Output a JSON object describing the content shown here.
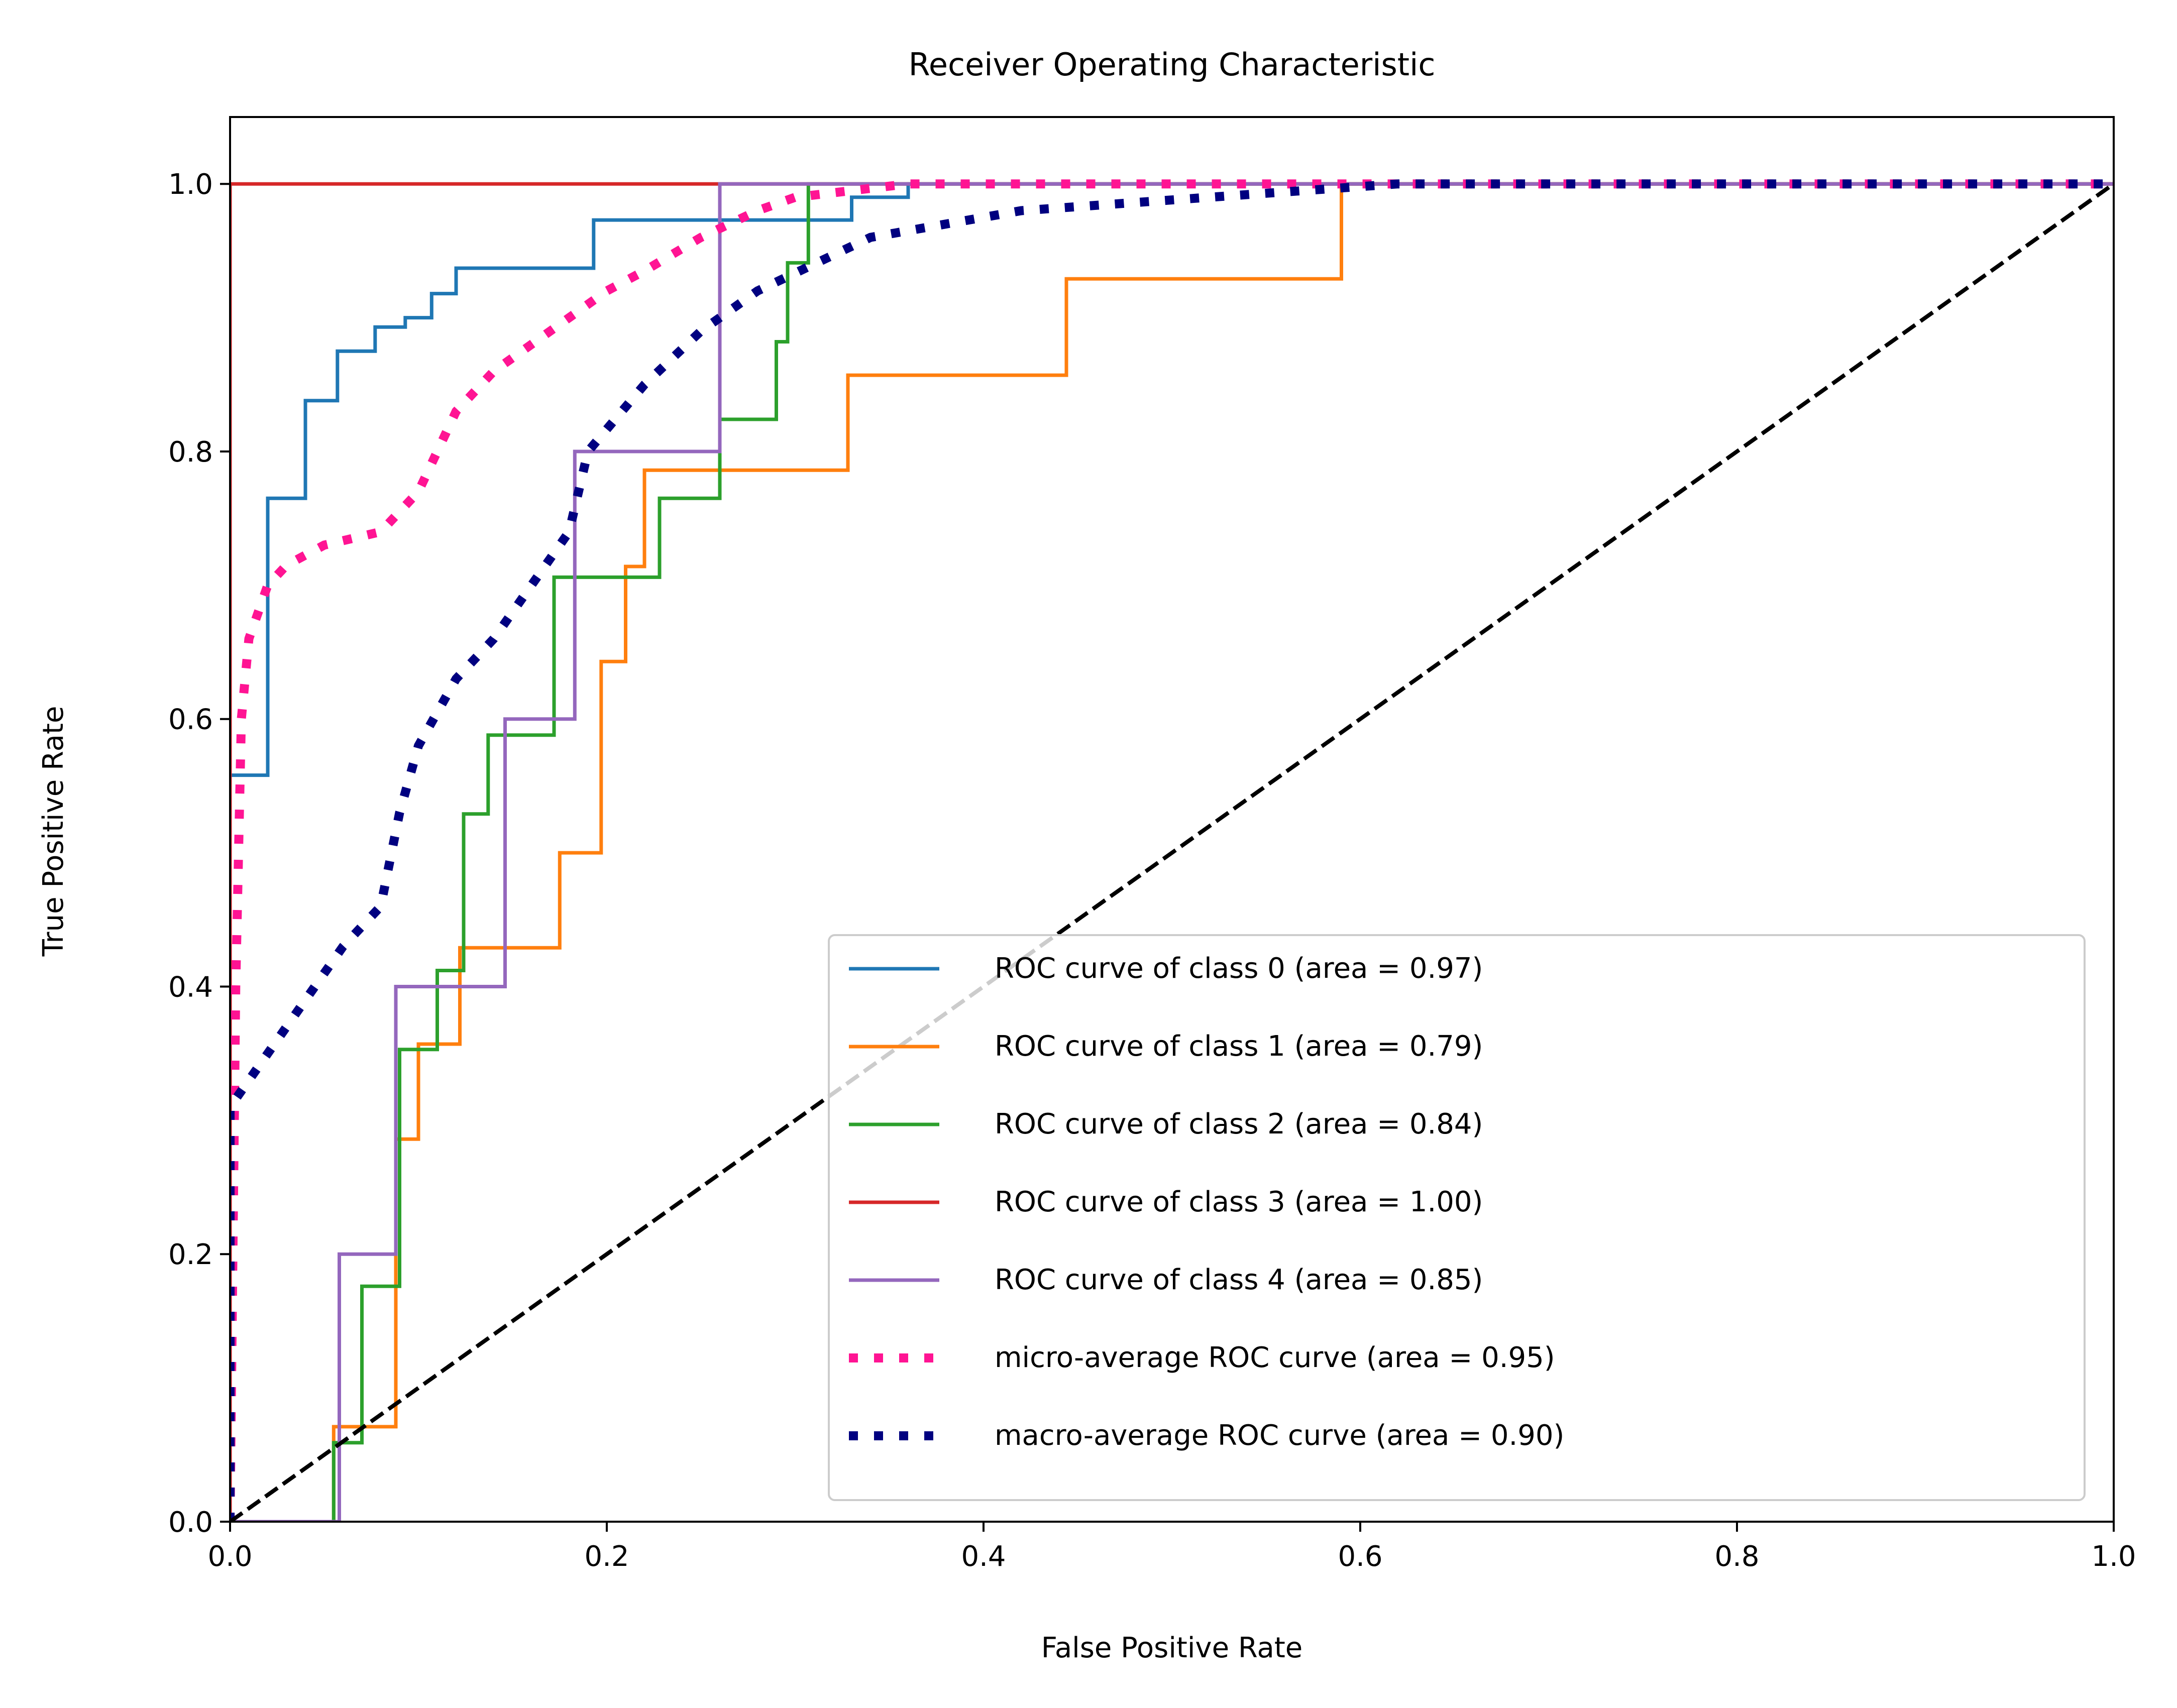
{
  "chart_data": {
    "type": "line",
    "title": "Receiver Operating Characteristic",
    "xlabel": "False Positive Rate",
    "ylabel": "True Positive Rate",
    "xlim": [
      0.0,
      1.0
    ],
    "ylim": [
      0.0,
      1.05
    ],
    "x_ticks": [
      "0.0",
      "0.2",
      "0.4",
      "0.6",
      "0.8",
      "1.0"
    ],
    "y_ticks": [
      "0.0",
      "0.2",
      "0.4",
      "0.6",
      "0.8",
      "1.0"
    ],
    "grid": false,
    "legend_position": "lower-right",
    "series": [
      {
        "name": "ROC curve of class 0 (area = 0.97)",
        "color": "#1f77b4",
        "style": "solid",
        "x": [
          0.0,
          0.0,
          0.02,
          0.02,
          0.04,
          0.04,
          0.057,
          0.057,
          0.077,
          0.077,
          0.093,
          0.093,
          0.107,
          0.107,
          0.12,
          0.12,
          0.134,
          0.134,
          0.155,
          0.155,
          0.193,
          0.193,
          0.33,
          0.33,
          0.36,
          0.36,
          1.0
        ],
        "y": [
          0.0,
          0.558,
          0.558,
          0.765,
          0.765,
          0.838,
          0.838,
          0.875,
          0.875,
          0.893,
          0.893,
          0.9,
          0.9,
          0.918,
          0.918,
          0.937,
          0.937,
          0.937,
          0.937,
          0.937,
          0.937,
          0.973,
          0.973,
          0.99,
          0.99,
          1.0,
          1.0
        ]
      },
      {
        "name": "ROC curve of class 1 (area = 0.79)",
        "color": "#ff7f0e",
        "style": "solid",
        "x": [
          0.0,
          0.055,
          0.055,
          0.088,
          0.088,
          0.1,
          0.1,
          0.122,
          0.122,
          0.175,
          0.175,
          0.197,
          0.197,
          0.21,
          0.21,
          0.22,
          0.22,
          0.228,
          0.228,
          0.328,
          0.328,
          0.444,
          0.444,
          0.59,
          0.59,
          1.0
        ],
        "y": [
          0.0,
          0.0,
          0.071,
          0.071,
          0.286,
          0.286,
          0.357,
          0.357,
          0.429,
          0.429,
          0.5,
          0.5,
          0.643,
          0.643,
          0.714,
          0.714,
          0.786,
          0.786,
          0.786,
          0.786,
          0.857,
          0.857,
          0.929,
          0.929,
          1.0,
          1.0
        ]
      },
      {
        "name": "ROC curve of class 2 (area = 0.84)",
        "color": "#2ca02c",
        "style": "solid",
        "x": [
          0.0,
          0.055,
          0.055,
          0.07,
          0.07,
          0.09,
          0.09,
          0.11,
          0.11,
          0.124,
          0.124,
          0.137,
          0.137,
          0.172,
          0.172,
          0.205,
          0.205,
          0.228,
          0.228,
          0.26,
          0.26,
          0.29,
          0.29,
          0.296,
          0.296,
          0.307,
          0.307,
          1.0
        ],
        "y": [
          0.0,
          0.0,
          0.059,
          0.059,
          0.176,
          0.176,
          0.353,
          0.353,
          0.412,
          0.412,
          0.529,
          0.529,
          0.588,
          0.588,
          0.706,
          0.706,
          0.706,
          0.706,
          0.765,
          0.765,
          0.824,
          0.824,
          0.882,
          0.882,
          0.941,
          0.941,
          1.0,
          1.0
        ]
      },
      {
        "name": "ROC curve of class 3 (area = 1.00)",
        "color": "#d62728",
        "style": "solid",
        "x": [
          0.0,
          0.0,
          1.0
        ],
        "y": [
          0.0,
          1.0,
          1.0
        ]
      },
      {
        "name": "ROC curve of class 4 (area = 0.85)",
        "color": "#9467bd",
        "style": "solid",
        "x": [
          0.0,
          0.058,
          0.058,
          0.088,
          0.088,
          0.146,
          0.146,
          0.183,
          0.183,
          0.26,
          0.26,
          1.0
        ],
        "y": [
          0.0,
          0.0,
          0.2,
          0.2,
          0.4,
          0.4,
          0.6,
          0.6,
          0.8,
          0.8,
          1.0,
          1.0
        ]
      },
      {
        "name": "micro-average ROC curve (area = 0.95)",
        "color": "#ff1493",
        "style": "dotted",
        "x": [
          0.0,
          0.003,
          0.006,
          0.01,
          0.02,
          0.03,
          0.05,
          0.08,
          0.1,
          0.12,
          0.14,
          0.16,
          0.18,
          0.2,
          0.22,
          0.25,
          0.28,
          0.3,
          0.33,
          0.36,
          0.4,
          0.5,
          0.6,
          0.8,
          1.0
        ],
        "y": [
          0.0,
          0.4,
          0.6,
          0.66,
          0.7,
          0.715,
          0.73,
          0.74,
          0.77,
          0.83,
          0.86,
          0.88,
          0.9,
          0.92,
          0.935,
          0.96,
          0.98,
          0.99,
          0.995,
          1.0,
          1.0,
          1.0,
          1.0,
          1.0,
          1.0
        ]
      },
      {
        "name": "macro-average ROC curve (area = 0.90)",
        "color": "#000080",
        "style": "dotted",
        "x": [
          0.0,
          0.0,
          0.01,
          0.03,
          0.06,
          0.08,
          0.09,
          0.1,
          0.12,
          0.14,
          0.16,
          0.18,
          0.19,
          0.22,
          0.25,
          0.28,
          0.31,
          0.34,
          0.38,
          0.42,
          0.47,
          0.52,
          0.57,
          0.62,
          0.7,
          0.8,
          0.9,
          1.0
        ],
        "y": [
          0.0,
          0.31,
          0.33,
          0.37,
          0.43,
          0.46,
          0.53,
          0.58,
          0.63,
          0.66,
          0.7,
          0.74,
          0.8,
          0.85,
          0.89,
          0.92,
          0.94,
          0.96,
          0.97,
          0.98,
          0.985,
          0.99,
          0.995,
          1.0,
          1.0,
          1.0,
          1.0,
          1.0
        ]
      },
      {
        "name": "",
        "color": "#000000",
        "style": "dashed",
        "x": [
          0.0,
          1.0
        ],
        "y": [
          0.0,
          1.0
        ]
      }
    ]
  }
}
